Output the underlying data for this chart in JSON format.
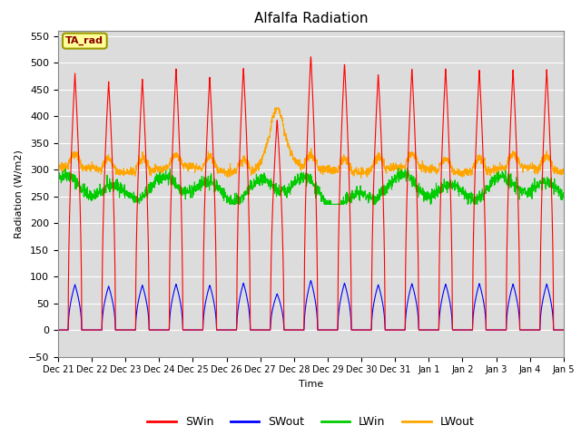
{
  "title": "Alfalfa Radiation",
  "ylabel": "Radiation (W/m2)",
  "xlabel": "Time",
  "ylim": [
    -50,
    560
  ],
  "yticks": [
    -50,
    0,
    50,
    100,
    150,
    200,
    250,
    300,
    350,
    400,
    450,
    500,
    550
  ],
  "annotation_text": "TA_rad",
  "annotation_color": "#8B0000",
  "annotation_bg": "#FFFF99",
  "annotation_border": "#999900",
  "colors": {
    "SWin": "#FF0000",
    "SWout": "#0000FF",
    "LWin": "#00CC00",
    "LWout": "#FFA500"
  },
  "bg_color": "#DCDCDC",
  "n_days": 15,
  "start_day": 21,
  "tick_labels": [
    "Dec 21",
    "Dec 22",
    "Dec 23",
    "Dec 24",
    "Dec 25",
    "Dec 26",
    "Dec 27",
    "Dec 28",
    "Dec 29",
    "Dec 30",
    "Dec 31",
    "Jan 1",
    "Jan 2",
    "Jan 3",
    "Jan 4",
    "Jan 5"
  ],
  "SWin_peaks": [
    480,
    465,
    470,
    490,
    475,
    492,
    395,
    515,
    500,
    480,
    490,
    490,
    487,
    487,
    487
  ],
  "SWout_peaks": [
    85,
    82,
    84,
    86,
    84,
    88,
    68,
    93,
    88,
    85,
    87,
    86,
    87,
    86,
    86
  ],
  "LWin_base": 265,
  "LWout_base": 300
}
